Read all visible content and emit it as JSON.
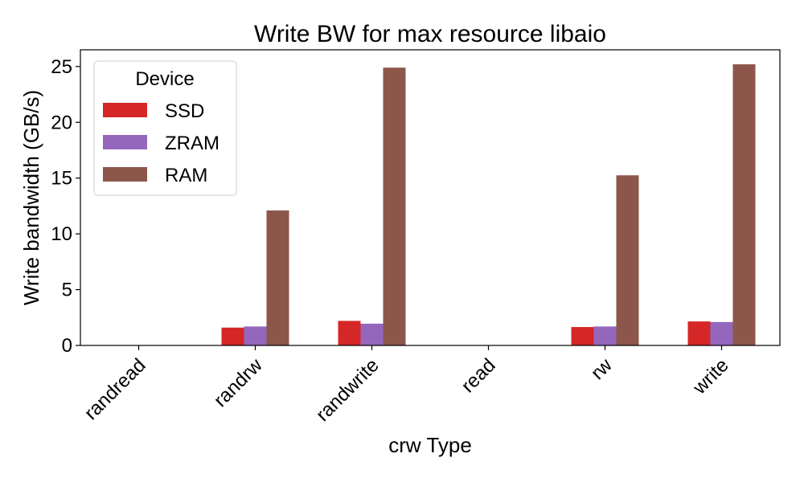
{
  "chart_data": {
    "type": "bar",
    "title": "Write BW for max resource libaio",
    "xlabel": "crw Type",
    "ylabel": "Write bandwidth (GB/s)",
    "categories": [
      "randread",
      "randrw",
      "randwrite",
      "read",
      "rw",
      "write"
    ],
    "series": [
      {
        "name": "SSD",
        "color": "#d62728",
        "values": [
          0,
          1.6,
          2.2,
          0,
          1.65,
          2.15
        ]
      },
      {
        "name": "ZRAM",
        "color": "#9467bd",
        "values": [
          0,
          1.7,
          1.95,
          0,
          1.7,
          2.1
        ]
      },
      {
        "name": "RAM",
        "color": "#8c564b",
        "values": [
          0,
          12.1,
          24.9,
          0,
          15.25,
          25.2
        ]
      }
    ],
    "ylim": [
      0,
      26.5
    ],
    "yticks": [
      0,
      5,
      10,
      15,
      20,
      25
    ],
    "legend": {
      "title": "Device",
      "placement": "top-left"
    },
    "grid": false
  }
}
